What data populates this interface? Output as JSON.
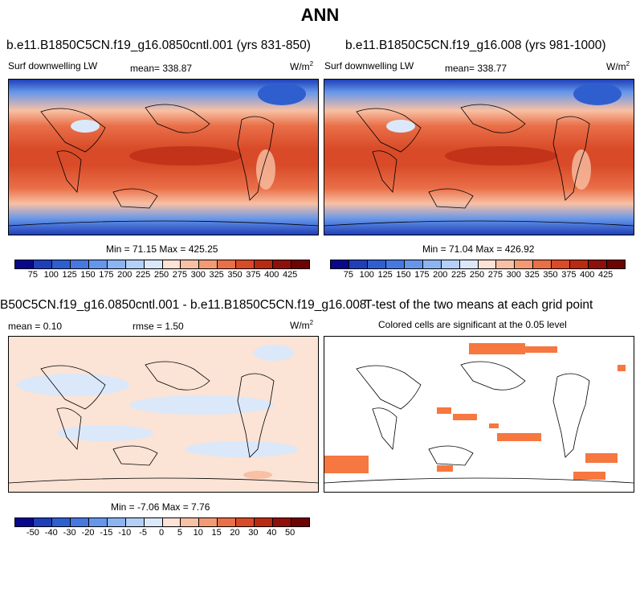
{
  "chart_data": [
    {
      "type": "heatmap",
      "title": "b.e11.B1850C5CN.f19_g16.0850cntl.001 (yrs 831-850)",
      "left_label": "Surf downwelling LW",
      "mean_label": "mean= 338.87",
      "units": "W/m",
      "units_sup": "2",
      "minmax_label": "Min =  71.15 Max = 425.25",
      "mean": 338.87,
      "min": 71.15,
      "max": 425.25,
      "colorbar_ticks": [
        "75",
        "100",
        "125",
        "150",
        "175",
        "200",
        "225",
        "250",
        "275",
        "300",
        "325",
        "350",
        "375",
        "400",
        "425"
      ]
    },
    {
      "type": "heatmap",
      "title": "b.e11.B1850C5CN.f19_g16.008 (yrs 981-1000)",
      "left_label": "Surf downwelling LW",
      "units": "W/m",
      "units_sup": "2",
      "mean_label": "mean= 338.77",
      "minmax_label": "Min =  71.04 Max = 426.92",
      "mean": 338.77,
      "min": 71.04,
      "max": 426.92,
      "colorbar_ticks": [
        "75",
        "100",
        "125",
        "150",
        "175",
        "200",
        "225",
        "250",
        "275",
        "300",
        "325",
        "350",
        "375",
        "400",
        "425"
      ]
    },
    {
      "type": "heatmap",
      "title": "B50C5CN.f19_g16.0850cntl.001 - b.e11.B1850C5CN.f19_g16.008",
      "mean_label": "mean =   0.10",
      "rmse_label": "rmse =   1.50",
      "units": "W/m",
      "units_sup": "2",
      "minmax_label": "Min =  -7.06 Max =   7.76",
      "mean": 0.1,
      "rmse": 1.5,
      "min": -7.06,
      "max": 7.76,
      "colorbar_ticks": [
        "-50",
        "-40",
        "-30",
        "-20",
        "-15",
        "-10",
        "-5",
        "0",
        "5",
        "10",
        "15",
        "20",
        "30",
        "40",
        "50"
      ]
    },
    {
      "type": "heatmap",
      "title": "T-test of the two means at each grid point",
      "subtitle": "Colored cells are significant at the 0.05 level"
    }
  ],
  "figure_title": "ANN",
  "colors": {
    "abs_scale": [
      "#08088c",
      "#1f3fb8",
      "#2f5fcf",
      "#4678e0",
      "#6596ea",
      "#8cb4f0",
      "#b4d0f6",
      "#dbe8fa",
      "#fbe3d5",
      "#f8c0a4",
      "#f29a73",
      "#e96f48",
      "#d84a28",
      "#b92a13",
      "#8f1008",
      "#6e0303"
    ],
    "diff_scale": [
      "#08088c",
      "#1f3fb8",
      "#2f5fcf",
      "#4678e0",
      "#6596ea",
      "#8cb4f0",
      "#b4d0f6",
      "#dbe8fa",
      "#fbe3d5",
      "#f8c0a4",
      "#f29a73",
      "#e96f48",
      "#d84a28",
      "#b92a13",
      "#8f1008",
      "#6e0303"
    ],
    "signif": "#f6773f"
  }
}
